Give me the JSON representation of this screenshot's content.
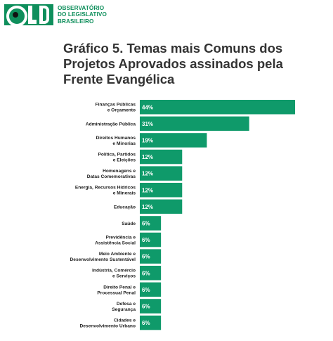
{
  "logo": {
    "line1": "OBSERVATÓRIO",
    "line2": "DO LEGISLATIVO",
    "line3": "BRASILEIRO"
  },
  "header": {
    "title_lines": [
      "Gráfico 5. Temas mais Comuns dos",
      "Projetos Aprovados assinados pela",
      "Frente Evangélica"
    ]
  },
  "colors": {
    "bar": "#0f9a6a",
    "brand": "#0f8f5c"
  },
  "chart_data": {
    "type": "bar",
    "orientation": "horizontal",
    "title": "Gráfico 5. Temas mais Comuns dos Projetos Aprovados assinados pela Frente Evangélica",
    "unit": "%",
    "categories": [
      [
        "Finanças Públicas",
        "e Orçamento"
      ],
      [
        "Administração Pública"
      ],
      [
        "Direitos Humanos",
        "e Minorias"
      ],
      [
        "Política, Partidos",
        "e Eleições"
      ],
      [
        "Homenagens e",
        "Datas Comemorativas"
      ],
      [
        "Energia, Recursos Hídricos",
        "e Minerais"
      ],
      [
        "Educação"
      ],
      [
        "Saúde"
      ],
      [
        "Previdência e",
        "Assistência Social"
      ],
      [
        "Meio Ambiente e",
        "Desenvolvimento Sustentável"
      ],
      [
        "Indústria, Comércio",
        "e Serviços"
      ],
      [
        "Direito Penal e",
        "Processual Penal"
      ],
      [
        "Defesa e",
        "Segurança"
      ],
      [
        "Cidades e",
        "Desenvolvimento Urbano"
      ]
    ],
    "values": [
      44,
      31,
      19,
      12,
      12,
      12,
      12,
      6,
      6,
      6,
      6,
      6,
      6,
      6
    ],
    "value_labels": [
      "44%",
      "31%",
      "19%",
      "12%",
      "12%",
      "12%",
      "12%",
      "6%",
      "6%",
      "6%",
      "6%",
      "6%",
      "6%",
      "6%"
    ],
    "xlim": [
      0,
      44
    ],
    "grid": false,
    "legend": "none"
  }
}
